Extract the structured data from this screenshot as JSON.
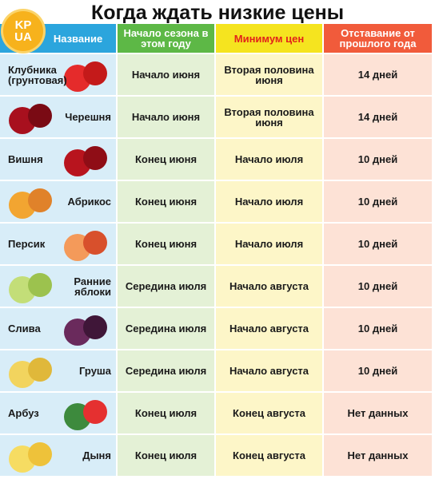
{
  "title": "Когда ждать низкие цены",
  "logo": {
    "top": "KP",
    "bottom": "UA"
  },
  "table": {
    "header": [
      "Название",
      "Начало сезона в этом году",
      "Минимум цен",
      "Отставание от прошлого года"
    ],
    "rows": [
      [
        "Клубника (грунтовая)",
        "Начало июня",
        "Вторая половина июня",
        "14 дней"
      ],
      [
        "Черешня",
        "Начало июня",
        "Вторая половина июня",
        "14 дней"
      ],
      [
        "Вишня",
        "Конец июня",
        "Начало июля",
        "10 дней"
      ],
      [
        "Абрикос",
        "Конец июня",
        "Начало июля",
        "10 дней"
      ],
      [
        "Персик",
        "Конец июня",
        "Начало июля",
        "10 дней"
      ],
      [
        "Ранние яблоки",
        "Середина июля",
        "Начало августа",
        "10 дней"
      ],
      [
        "Слива",
        "Середина июля",
        "Начало августа",
        "10 дней"
      ],
      [
        "Груша",
        "Середина июля",
        "Начало августа",
        "10 дней"
      ],
      [
        "Арбуз",
        "Конец июля",
        "Конец августа",
        "Нет данных"
      ],
      [
        "Дыня",
        "Конец июля",
        "Конец августа",
        "Нет данных"
      ]
    ]
  }
}
